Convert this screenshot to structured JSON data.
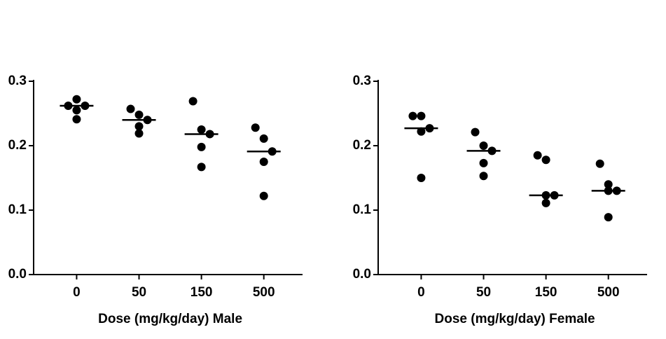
{
  "chart_data": [
    {
      "type": "dotplot",
      "x_label": "Dose (mg/kg/day) Male",
      "categories": [
        "0",
        "50",
        "150",
        "500"
      ],
      "values": [
        [
          0.262,
          0.272,
          0.262,
          0.255,
          0.241
        ],
        [
          0.257,
          0.248,
          0.24,
          0.23,
          0.219
        ],
        [
          0.269,
          0.225,
          0.218,
          0.198,
          0.167
        ],
        [
          0.228,
          0.211,
          0.191,
          0.175,
          0.122
        ]
      ],
      "medians": [
        0.262,
        0.24,
        0.218,
        0.191
      ],
      "color": "#000000",
      "ylim": [
        0,
        0.3
      ],
      "yticks": [
        {
          "value": 0,
          "label": "0.0"
        },
        0.1,
        0.2,
        0.3
      ]
    },
    {
      "type": "dotplot",
      "x_label": "Dose (mg/kg/day) Female",
      "categories": [
        "0",
        "50",
        "150",
        "500"
      ],
      "values": [
        [
          0.246,
          0.246,
          0.227,
          0.222,
          0.15
        ],
        [
          0.221,
          0.2,
          0.192,
          0.173,
          0.153
        ],
        [
          0.185,
          0.178,
          0.123,
          0.123,
          0.111
        ],
        [
          0.172,
          0.14,
          0.13,
          0.13,
          0.089
        ]
      ],
      "medians": [
        0.227,
        0.192,
        0.123,
        0.13
      ],
      "color": "#000000",
      "ylim": [
        0,
        0.3
      ],
      "yticks": [
        {
          "value": 0,
          "label": "0.0"
        },
        0.1,
        0.2,
        0.3
      ]
    }
  ]
}
